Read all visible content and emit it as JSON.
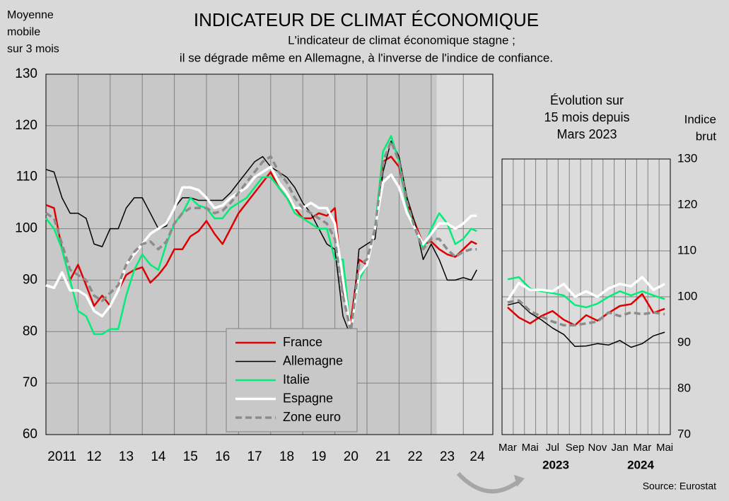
{
  "title": "INDICATEUR DE CLIMAT ÉCONOMIQUE",
  "subtitle_lines": [
    "L'indicateur de climat économique stagne ;",
    "il se dégrade même en Allemagne, à l'inverse de l'indice de confiance."
  ],
  "source": "Source: Eurostat",
  "chart_data": [
    {
      "type": "line",
      "axis_title_lines": [
        "Moyenne",
        "mobile",
        "sur 3 mois"
      ],
      "x": [
        2011,
        2011.25,
        2011.5,
        2011.75,
        2012,
        2012.25,
        2012.5,
        2012.75,
        2013,
        2013.25,
        2013.5,
        2013.75,
        2014,
        2014.25,
        2014.5,
        2014.75,
        2015,
        2015.25,
        2015.5,
        2015.75,
        2016,
        2016.25,
        2016.5,
        2016.75,
        2017,
        2017.25,
        2017.5,
        2017.75,
        2018,
        2018.25,
        2018.5,
        2018.75,
        2019,
        2019.25,
        2019.5,
        2019.75,
        2020,
        2020.25,
        2020.5,
        2020.75,
        2021,
        2021.25,
        2021.5,
        2021.75,
        2022,
        2022.25,
        2022.5,
        2022.75,
        2023,
        2023.25,
        2023.5,
        2023.75,
        2024,
        2024.25,
        2024.42
      ],
      "xlim": [
        2011,
        2024.92
      ],
      "xticks": [
        {
          "value": 2011.5,
          "label": "2011"
        },
        {
          "value": 2012.5,
          "label": "12"
        },
        {
          "value": 2013.5,
          "label": "13"
        },
        {
          "value": 2014.5,
          "label": "14"
        },
        {
          "value": 2015.5,
          "label": "15"
        },
        {
          "value": 2016.5,
          "label": "16"
        },
        {
          "value": 2017.5,
          "label": "17"
        },
        {
          "value": 2018.5,
          "label": "18"
        },
        {
          "value": 2019.5,
          "label": "19"
        },
        {
          "value": 2020.5,
          "label": "20"
        },
        {
          "value": 2021.5,
          "label": "21"
        },
        {
          "value": 2022.5,
          "label": "22"
        },
        {
          "value": 2023.5,
          "label": "23"
        },
        {
          "value": 2024.5,
          "label": "24"
        }
      ],
      "xgridlines": [
        2012,
        2013,
        2014,
        2015,
        2016,
        2017,
        2018,
        2019,
        2020,
        2021,
        2022,
        2023,
        2024
      ],
      "highlight_from": 2023.17,
      "ylim": [
        60,
        130
      ],
      "yticks": [
        60,
        70,
        80,
        90,
        100,
        110,
        120,
        130
      ],
      "grid": true,
      "legend": "bottom-center",
      "series": [
        {
          "name": "France",
          "color": "#e00000",
          "values": [
            104.6,
            104,
            96,
            90,
            93,
            89,
            85,
            87,
            85,
            88,
            91,
            92,
            92.5,
            89.5,
            91,
            93,
            96,
            96,
            98.5,
            99.5,
            101.5,
            99,
            97,
            100,
            103,
            105,
            107,
            109,
            111,
            108,
            106,
            104,
            102,
            102,
            103,
            102.5,
            104,
            88,
            82,
            94,
            93,
            100,
            113,
            114,
            112,
            105,
            101,
            97,
            97.5,
            96,
            95,
            94.5,
            96,
            97.5,
            97
          ]
        },
        {
          "name": "Allemagne",
          "color": "#000000",
          "values": [
            111.5,
            111,
            106,
            103,
            103,
            102,
            97,
            96.5,
            100,
            100,
            104,
            106,
            106,
            103,
            100,
            100.5,
            104,
            106,
            106,
            105.5,
            105.5,
            105.5,
            105.5,
            107,
            109,
            111,
            113,
            114,
            112,
            111,
            110,
            108,
            105,
            103,
            100,
            97,
            96,
            83,
            79,
            96,
            97,
            98,
            111,
            117,
            114,
            106,
            101,
            94,
            97,
            94,
            90,
            90,
            90.5,
            90,
            92
          ]
        },
        {
          "name": "Italie",
          "color": "#00ee77",
          "values": [
            102,
            100,
            96,
            90,
            84,
            83,
            79.5,
            79.5,
            80.5,
            80.5,
            87,
            92,
            95,
            93,
            92,
            97,
            101,
            103,
            106,
            104.5,
            104,
            102,
            102,
            104,
            105,
            106,
            108,
            110,
            110,
            108,
            106,
            103,
            102,
            101,
            100,
            100,
            94,
            94,
            80,
            90,
            93,
            100,
            115,
            118,
            113,
            104,
            100,
            96,
            100,
            103,
            101,
            97,
            98,
            100,
            99.5
          ]
        },
        {
          "name": "Espagne",
          "color": "#ffffff",
          "values": [
            89,
            88.5,
            91.5,
            88,
            88,
            87,
            84,
            83,
            85,
            88,
            93,
            95,
            97,
            99,
            100,
            101,
            104,
            108,
            108,
            107.5,
            106,
            104,
            104.5,
            106,
            107,
            108,
            110,
            111,
            112,
            109,
            107,
            104,
            104,
            105,
            104,
            104,
            101,
            90,
            80,
            91,
            93,
            100,
            109,
            110.5,
            108,
            103,
            100,
            97,
            99,
            101,
            101,
            100,
            101,
            102.5,
            102.5
          ]
        },
        {
          "name": "Zone euro",
          "color": "#8c8c8c",
          "dash": true,
          "values": [
            103,
            102,
            97,
            92,
            91,
            90,
            87,
            86,
            87.5,
            89,
            93,
            95.5,
            97,
            97.5,
            96,
            97.5,
            101,
            103,
            104,
            104,
            104,
            103,
            103.5,
            105,
            107,
            109,
            111,
            113,
            114,
            111,
            109,
            106,
            104,
            103,
            102,
            101,
            98,
            87,
            80,
            93,
            94,
            100,
            113,
            117,
            113,
            105,
            100,
            96,
            98,
            98,
            96,
            94.5,
            95.5,
            96,
            96
          ]
        }
      ]
    },
    {
      "type": "line",
      "title_lines": [
        "Évolution sur",
        "15 mois depuis",
        "Mars 2023"
      ],
      "axis_title_lines": [
        "Indice",
        "brut"
      ],
      "categories": [
        "Mar",
        null,
        "Mai",
        null,
        "Jul",
        null,
        "Sep",
        null,
        "Nov",
        null,
        "Jan",
        null,
        "Mar",
        null,
        "Mai"
      ],
      "years": [
        "2023",
        "2024"
      ],
      "ylim": [
        70,
        130
      ],
      "yticks": [
        70,
        80,
        90,
        100,
        110,
        120,
        130
      ],
      "grid": true,
      "series": [
        {
          "color": "#e00000",
          "values": [
            97.7,
            95.5,
            94.2,
            95.8,
            96.9,
            95.0,
            93.8,
            96.0,
            94.8,
            96.5,
            98.0,
            98.4,
            100.6,
            96.5,
            97.4
          ]
        },
        {
          "color": "#000000",
          "values": [
            98.2,
            98.8,
            96.5,
            95.0,
            93.2,
            91.8,
            89.2,
            89.3,
            89.8,
            89.5,
            90.5,
            89.0,
            89.8,
            91.5,
            92.3
          ]
        },
        {
          "color": "#00ee77",
          "values": [
            103.8,
            104.3,
            101.8,
            101.2,
            100.8,
            100.3,
            98.2,
            97.7,
            98.5,
            100,
            101.2,
            100.3,
            101.2,
            100.3,
            99.5
          ]
        },
        {
          "color": "#ffffff",
          "values": [
            99.2,
            103,
            101.5,
            101.5,
            101.2,
            102.8,
            100,
            101.2,
            100,
            101.8,
            102.8,
            102.3,
            104.3,
            101.5,
            102.8
          ]
        },
        {
          "color": "#8c8c8c",
          "dash": true,
          "values": [
            98.8,
            99.2,
            96.9,
            95.7,
            94.6,
            93.8,
            93.8,
            94.2,
            94.6,
            96.6,
            95.8,
            96.6,
            96.2,
            96.6,
            96.2
          ]
        }
      ]
    }
  ]
}
